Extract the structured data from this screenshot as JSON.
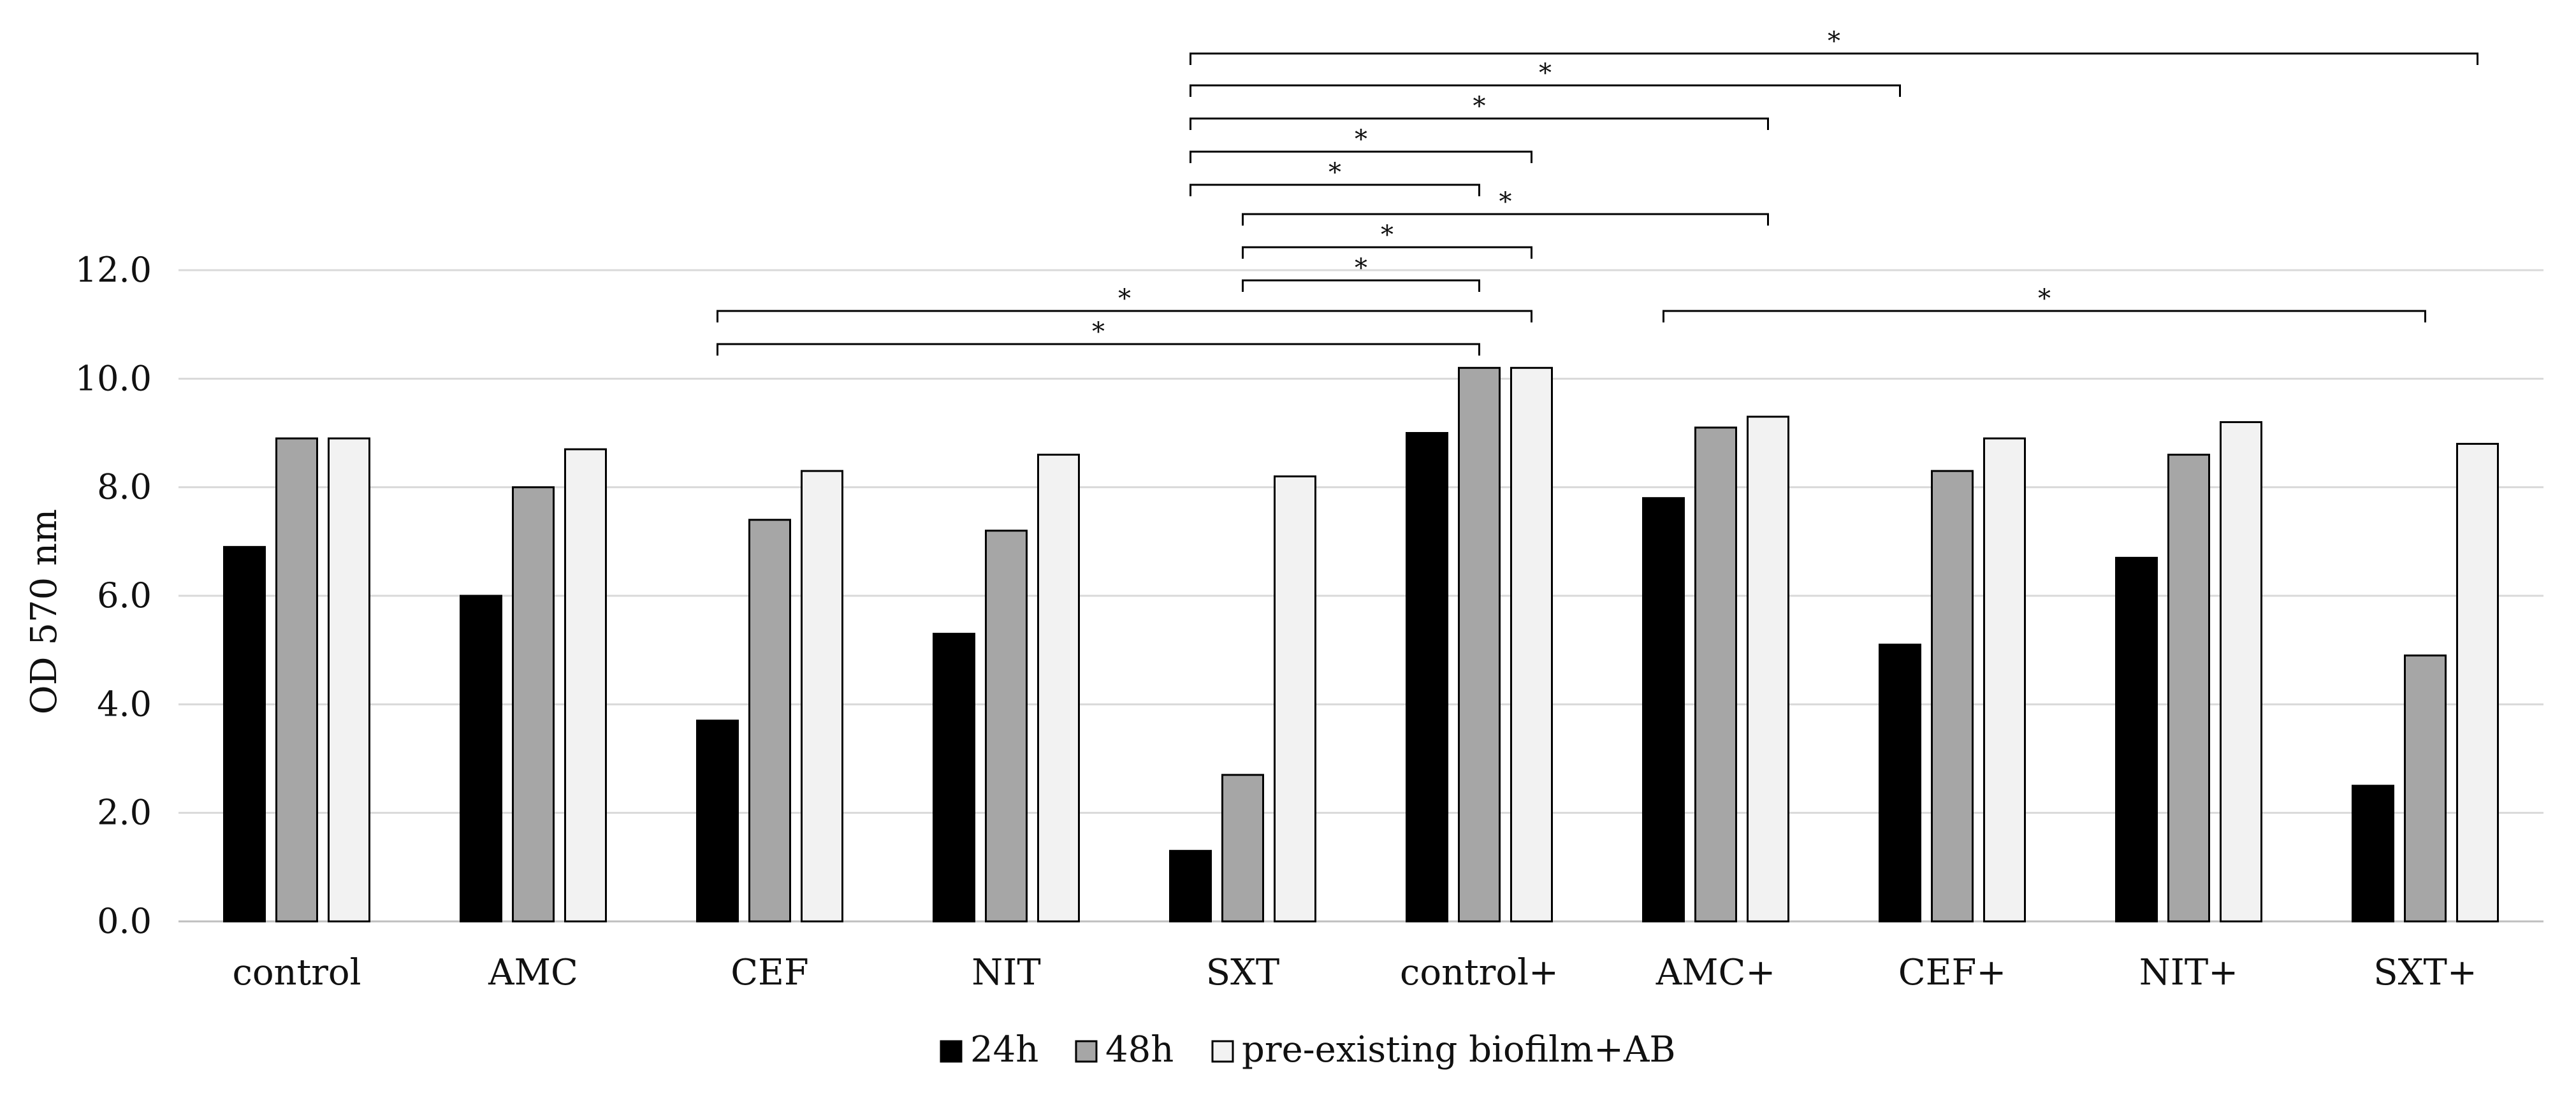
{
  "chart_data": {
    "type": "bar",
    "title": "",
    "xlabel": "",
    "ylabel": "OD 570 nm",
    "ylim": [
      0,
      12
    ],
    "yticks": [
      "0.0",
      "2.0",
      "4.0",
      "6.0",
      "8.0",
      "10.0",
      "12.0"
    ],
    "grid": true,
    "legend_position": "bottom-center",
    "categories": [
      "control",
      "AMC",
      "CEF",
      "NIT",
      "SXT",
      "control+",
      "AMC+",
      "CEF+",
      "NIT+",
      "SXT+"
    ],
    "series": [
      {
        "name": "24h",
        "color": "#000000",
        "values": [
          6.9,
          6.0,
          3.7,
          5.3,
          1.3,
          9.0,
          7.8,
          5.1,
          6.7,
          2.5
        ]
      },
      {
        "name": "48h",
        "color": "#a6a6a6",
        "values": [
          8.9,
          8.0,
          7.4,
          7.2,
          2.7,
          10.2,
          9.1,
          8.3,
          8.6,
          4.9
        ]
      },
      {
        "name": "pre-existing biofilm+AB",
        "color": "#f2f2f2",
        "values": [
          8.9,
          8.7,
          8.3,
          8.6,
          8.2,
          10.2,
          9.3,
          8.9,
          9.2,
          8.8
        ]
      }
    ],
    "significance": [
      {
        "from": [
          4,
          0
        ],
        "to": [
          9,
          2
        ],
        "label": "*"
      },
      {
        "from": [
          4,
          0
        ],
        "to": [
          7,
          0
        ],
        "label": "*"
      },
      {
        "from": [
          4,
          0
        ],
        "to": [
          6,
          2
        ],
        "label": "*"
      },
      {
        "from": [
          4,
          0
        ],
        "to": [
          5,
          2
        ],
        "label": "*"
      },
      {
        "from": [
          4,
          0
        ],
        "to": [
          5,
          1
        ],
        "label": "*"
      },
      {
        "from": [
          4,
          1
        ],
        "to": [
          6,
          2
        ],
        "label": "*"
      },
      {
        "from": [
          4,
          1
        ],
        "to": [
          5,
          2
        ],
        "label": "*"
      },
      {
        "from": [
          4,
          1
        ],
        "to": [
          5,
          1
        ],
        "label": "*"
      },
      {
        "from": [
          2,
          0
        ],
        "to": [
          5,
          2
        ],
        "label": "*"
      },
      {
        "from": [
          2,
          0
        ],
        "to": [
          5,
          1
        ],
        "label": "*"
      },
      {
        "from": [
          6,
          0
        ],
        "to": [
          9,
          1
        ],
        "label": "*"
      }
    ]
  }
}
